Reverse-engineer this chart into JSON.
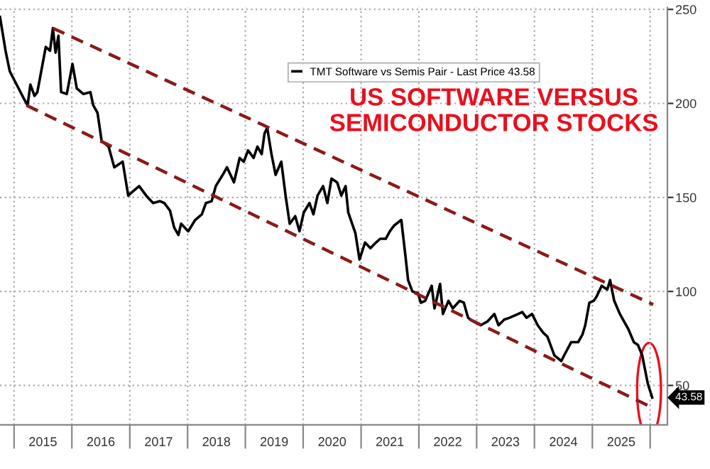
{
  "chart_data": {
    "type": "line",
    "title": "US SOFTWARE VERSUS SEMICONDUCTOR STOCKS",
    "series": [
      {
        "name": "TMT Software vs Semis Pair - Last Price 43.58",
        "color": "#000000",
        "x": [
          "2014-10-04",
          "2014-11-08",
          "2014-12-05",
          "2015-01-17",
          "2015-03-01",
          "2015-03-27",
          "2015-04-14",
          "2015-05-10",
          "2015-05-28",
          "2015-07-20",
          "2015-08-16",
          "2015-09-03",
          "2015-09-20",
          "2015-10-08",
          "2015-10-25",
          "2015-11-30",
          "2016-01-05",
          "2016-02-01",
          "2016-03-14",
          "2016-04-27",
          "2016-05-15",
          "2016-06-11",
          "2016-07-07",
          "2016-08-20",
          "2016-09-25",
          "2016-11-17",
          "2016-12-22",
          "2017-01-18",
          "2017-03-01",
          "2017-04-14",
          "2017-05-28",
          "2017-07-11",
          "2017-08-07",
          "2017-09-12",
          "2017-10-08",
          "2017-11-04",
          "2017-11-21",
          "2018-01-05",
          "2018-02-18",
          "2018-04-01",
          "2018-04-27",
          "2018-06-02",
          "2018-06-28",
          "2018-08-11",
          "2018-09-07",
          "2018-10-21",
          "2018-11-26",
          "2018-12-22",
          "2019-01-18",
          "2019-02-22",
          "2019-03-18",
          "2019-04-14",
          "2019-05-02",
          "2019-05-19",
          "2019-06-15",
          "2019-07-11",
          "2019-08-16",
          "2019-09-12",
          "2019-10-08",
          "2019-11-12",
          "2019-12-09",
          "2020-01-05",
          "2020-02-10",
          "2020-03-06",
          "2020-04-01",
          "2020-05-06",
          "2020-06-02",
          "2020-06-28",
          "2020-08-03",
          "2020-08-29",
          "2020-09-25",
          "2020-10-12",
          "2020-11-26",
          "2020-12-22",
          "2021-01-26",
          "2021-03-01",
          "2021-04-05",
          "2021-05-02",
          "2021-06-06",
          "2021-07-02",
          "2021-07-28",
          "2021-09-12",
          "2021-10-08",
          "2021-10-25",
          "2021-11-21",
          "2021-12-27",
          "2022-01-13",
          "2022-02-10",
          "2022-03-23",
          "2022-04-10",
          "2022-05-15",
          "2022-06-02",
          "2022-07-07",
          "2022-08-03",
          "2022-09-16",
          "2022-10-12",
          "2022-11-08",
          "2022-12-13",
          "2023-01-26",
          "2023-03-10",
          "2023-04-23",
          "2023-05-19",
          "2023-06-24",
          "2023-07-28",
          "2023-09-20",
          "2023-10-16",
          "2023-11-12",
          "2023-12-17",
          "2024-01-22",
          "2024-02-26",
          "2024-03-23",
          "2024-05-06",
          "2024-06-19",
          "2024-07-07",
          "2024-08-20",
          "2024-10-03",
          "2024-10-30",
          "2024-11-17",
          "2024-12-13",
          "2025-01-09",
          "2025-01-26",
          "2025-03-01",
          "2025-04-05",
          "2025-04-23",
          "2025-05-19",
          "2025-06-24",
          "2025-07-20",
          "2025-08-16",
          "2025-09-20",
          "2025-10-16",
          "2025-11-12",
          "2025-12-17",
          "2026-01-14"
        ],
        "values": [
          246,
          228,
          217,
          210,
          203,
          199,
          210,
          204,
          206,
          230,
          228,
          240,
          227,
          236,
          206,
          205,
          221,
          208,
          205,
          206,
          199,
          195,
          180,
          177,
          166,
          169,
          151,
          153,
          156,
          151,
          147,
          148,
          147,
          143,
          134,
          130,
          136,
          132,
          138,
          141,
          147,
          148,
          156,
          162,
          166,
          158,
          171,
          169,
          175,
          171,
          177,
          173,
          184,
          187,
          173,
          162,
          169,
          151,
          136,
          140,
          132,
          142,
          147,
          141,
          151,
          156,
          147,
          160,
          158,
          151,
          156,
          142,
          131,
          117,
          126,
          123,
          126,
          128,
          128,
          132,
          135,
          138,
          119,
          106,
          100,
          99,
          94,
          95,
          103,
          91,
          104,
          88,
          95,
          91,
          95,
          94,
          86,
          84,
          82,
          84,
          88,
          82,
          85,
          86,
          88,
          89,
          86,
          88,
          82,
          78,
          76,
          66,
          63,
          66,
          73,
          73,
          77,
          82,
          94,
          95,
          97,
          103,
          101,
          106,
          95,
          88,
          84,
          80,
          73,
          71.5,
          66,
          51,
          43.58
        ]
      },
      {
        "type": "line",
        "color": "#8b1a1a",
        "line_style": "dashed",
        "x": [
          "2015-09-03",
          "2026-01-20"
        ],
        "values": [
          240,
          93
        ]
      },
      {
        "type": "line",
        "color": "#8b1a1a",
        "line_style": "dashed",
        "x": [
          "2015-03-20",
          "2026-01-20"
        ],
        "values": [
          199,
          38
        ]
      }
    ],
    "xlim": [
      "2014-10-04",
      "2026-04-20"
    ],
    "xticks": [
      {
        "value": "2015-01-01",
        "label": null
      },
      {
        "value": "2015-07-02",
        "label": "2015"
      },
      {
        "value": "2016-01-01",
        "label": null
      },
      {
        "value": "2016-07-02",
        "label": "2016"
      },
      {
        "value": "2017-01-01",
        "label": null
      },
      {
        "value": "2017-07-02",
        "label": "2017"
      },
      {
        "value": "2018-01-01",
        "label": null
      },
      {
        "value": "2018-07-02",
        "label": "2018"
      },
      {
        "value": "2019-01-01",
        "label": null
      },
      {
        "value": "2019-07-02",
        "label": "2019"
      },
      {
        "value": "2020-01-01",
        "label": null
      },
      {
        "value": "2020-07-02",
        "label": "2020"
      },
      {
        "value": "2021-01-01",
        "label": null
      },
      {
        "value": "2021-07-02",
        "label": "2021"
      },
      {
        "value": "2022-01-01",
        "label": null
      },
      {
        "value": "2022-07-02",
        "label": "2022"
      },
      {
        "value": "2023-01-01",
        "label": null
      },
      {
        "value": "2023-07-02",
        "label": "2023"
      },
      {
        "value": "2024-01-01",
        "label": null
      },
      {
        "value": "2024-07-02",
        "label": "2024"
      },
      {
        "value": "2025-01-01",
        "label": null
      },
      {
        "value": "2025-07-02",
        "label": "2025"
      },
      {
        "value": "2026-01-01",
        "label": null
      }
    ],
    "ylim": [
      29,
      251
    ],
    "yticks": [
      50,
      100,
      150,
      200,
      250
    ],
    "grid": true,
    "legend": "top",
    "line_style": "solid",
    "annotations": [
      {
        "text": "43.58",
        "x": "2026-01-14",
        "y": 43.58
      }
    ]
  }
}
